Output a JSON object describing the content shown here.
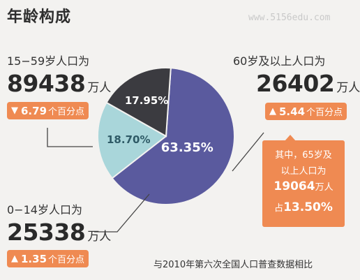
{
  "header": {
    "title": "年龄构成",
    "watermark": "www.5156edu.com"
  },
  "groups": {
    "working": {
      "label": "15−59岁人口为",
      "value": "89438",
      "unit": "万人",
      "change": "6.79",
      "change_unit": "个百分点",
      "direction_icon": "arrow-down-icon"
    },
    "elderly": {
      "label": "60岁及以上人口为",
      "value": "26402",
      "unit": "万人",
      "change": "5.44",
      "change_unit": "个百分点",
      "direction_icon": "arrow-up-icon"
    },
    "children": {
      "label": "0−14岁人口为",
      "value": "25338",
      "unit": "万人",
      "change": "1.35",
      "change_unit": "个百分点",
      "direction_icon": "arrow-up-icon"
    }
  },
  "callout": {
    "line1": "其中，65岁及",
    "line2": "以上人口为",
    "value": "19064",
    "unit": "万人",
    "prefix": "占",
    "share": "13.50%"
  },
  "footer": {
    "note": "与2010年第六次全国人口普查数据相比"
  },
  "colors": {
    "accent": "#ef8a52",
    "slice_working": "#5a5a9e",
    "slice_elderly": "#a9d6da",
    "slice_children": "#3b3b40"
  },
  "chart_data": {
    "type": "pie",
    "slices": [
      {
        "label": "15−59岁",
        "value": 63.35,
        "display": "63.35%",
        "color": "#5a5a9e"
      },
      {
        "label": "60岁及以上",
        "value": 18.7,
        "display": "18.70%",
        "color": "#a9d6da"
      },
      {
        "label": "0−14岁",
        "value": 17.95,
        "display": "17.95%",
        "color": "#3b3b40"
      }
    ]
  }
}
